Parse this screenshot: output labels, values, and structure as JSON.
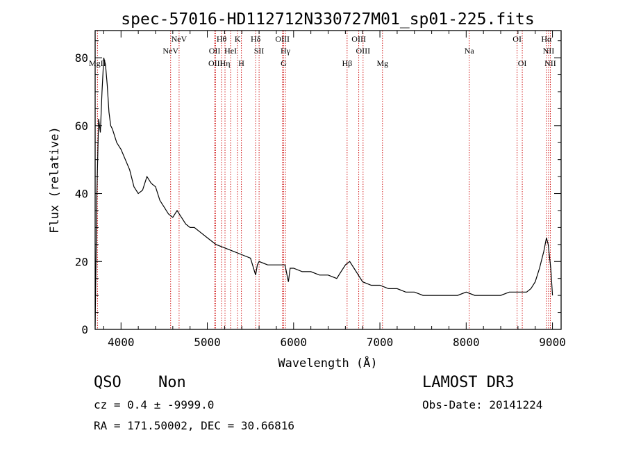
{
  "chart_data": {
    "type": "line",
    "title": "spec-57016-HD112712N330727M01_sp01-225.fits",
    "xlabel": "Wavelength (Å)",
    "ylabel": "Flux (relative)",
    "xlim": [
      3700,
      9100
    ],
    "ylim": [
      0,
      88
    ],
    "xticks": [
      4000,
      5000,
      6000,
      7000,
      8000,
      9000
    ],
    "yticks": [
      0,
      20,
      40,
      60,
      80
    ],
    "series": [
      {
        "name": "spectrum",
        "color": "#000000",
        "x": [
          3700,
          3720,
          3740,
          3760,
          3780,
          3800,
          3820,
          3840,
          3860,
          3880,
          3900,
          3950,
          4000,
          4050,
          4100,
          4150,
          4200,
          4250,
          4300,
          4350,
          4400,
          4450,
          4500,
          4550,
          4600,
          4650,
          4700,
          4750,
          4800,
          4850,
          4900,
          5000,
          5100,
          5200,
          5300,
          5400,
          5500,
          5560,
          5580,
          5600,
          5700,
          5800,
          5900,
          5940,
          5960,
          6000,
          6100,
          6200,
          6300,
          6400,
          6500,
          6550,
          6600,
          6650,
          6700,
          6750,
          6800,
          6900,
          7000,
          7100,
          7200,
          7300,
          7400,
          7500,
          7600,
          7700,
          7800,
          7900,
          8000,
          8100,
          8200,
          8300,
          8400,
          8500,
          8600,
          8700,
          8750,
          8800,
          8850,
          8900,
          8930,
          8950,
          8980,
          9000
        ],
        "y": [
          1,
          40,
          62,
          58,
          70,
          80,
          78,
          72,
          64,
          60,
          59,
          55,
          53,
          50,
          47,
          42,
          40,
          41,
          45,
          43,
          42,
          38,
          36,
          34,
          33,
          35,
          33,
          31,
          30,
          30,
          29,
          27,
          25,
          24,
          23,
          22,
          21,
          16,
          19,
          20,
          19,
          19,
          19,
          14,
          18,
          18,
          17,
          17,
          16,
          16,
          15,
          17,
          19,
          20,
          18,
          16,
          14,
          13,
          13,
          12,
          12,
          11,
          11,
          10,
          10,
          10,
          10,
          10,
          11,
          10,
          10,
          10,
          10,
          11,
          11,
          11,
          12,
          14,
          18,
          23,
          27,
          25,
          18,
          10
        ]
      }
    ],
    "lines": [
      {
        "wl": 3727,
        "label": "MgII",
        "row": 3
      },
      {
        "wl": 4575,
        "label": "NeV",
        "row": 2
      },
      {
        "wl": 4673,
        "label": "NeV",
        "row": 1
      },
      {
        "wl": 5085,
        "label": "OII",
        "row": 2
      },
      {
        "wl": 5095,
        "label": "OIII",
        "row": 3
      },
      {
        "wl": 5165,
        "label": "Hθ",
        "row": 1
      },
      {
        "wl": 5205,
        "label": "Hη",
        "row": 3
      },
      {
        "wl": 5270,
        "label": "HeI",
        "row": 2
      },
      {
        "wl": 5350,
        "label": "K",
        "row": 1
      },
      {
        "wl": 5395,
        "label": "H",
        "row": 3
      },
      {
        "wl": 5560,
        "label": "Hδ",
        "row": 1
      },
      {
        "wl": 5600,
        "label": "SII",
        "row": 2
      },
      {
        "wl": 5870,
        "label": "OIII",
        "row": 1
      },
      {
        "wl": 5905,
        "label": "Hγ",
        "row": 2
      },
      {
        "wl": 5885,
        "label": "G",
        "row": 3
      },
      {
        "wl": 6620,
        "label": "Hβ",
        "row": 3
      },
      {
        "wl": 6755,
        "label": "OIII",
        "row": 1
      },
      {
        "wl": 6805,
        "label": "OIII",
        "row": 2
      },
      {
        "wl": 7030,
        "label": "Mg",
        "row": 3
      },
      {
        "wl": 8035,
        "label": "Na",
        "row": 2
      },
      {
        "wl": 8590,
        "label": "OI",
        "row": 1
      },
      {
        "wl": 8650,
        "label": "OI",
        "row": 3
      },
      {
        "wl": 8930,
        "label": "Hα",
        "row": 1
      },
      {
        "wl": 8955,
        "label": "NII",
        "row": 2
      },
      {
        "wl": 8975,
        "label": "NII",
        "row": 3
      }
    ],
    "line_color": "#cc0000"
  },
  "info": {
    "class": "QSO",
    "subclass": "Non",
    "survey": "LAMOST DR3",
    "cz": "cz = 0.4 ± -9999.0",
    "obs_date": "Obs-Date: 20141224",
    "coords": "RA = 171.50002, DEC =  30.66816"
  }
}
